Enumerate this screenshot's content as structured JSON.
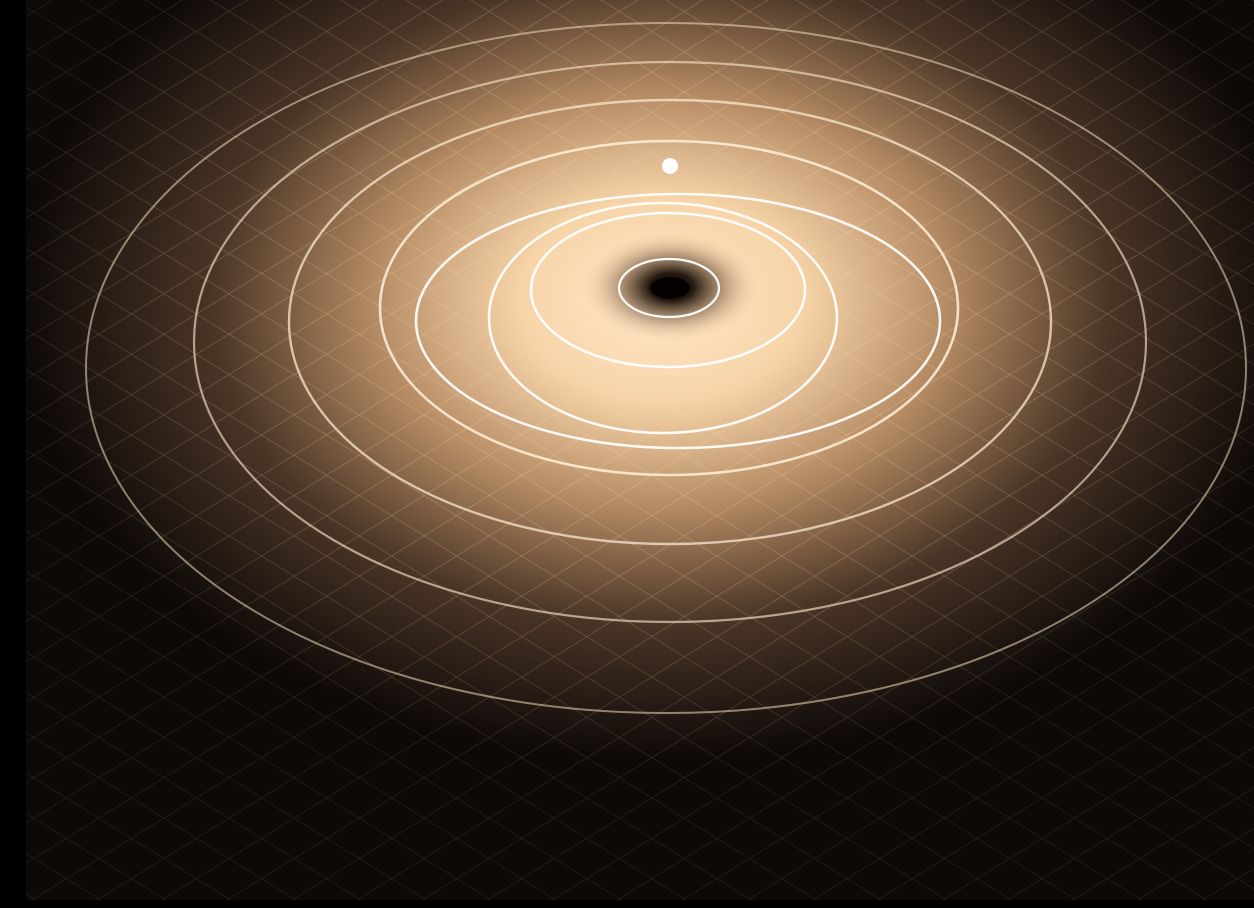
{
  "scene": {
    "subject": "orbits",
    "orbit_count": 8,
    "marker_count": 1,
    "colors": {
      "background": "#000000",
      "space_dark": "#0d0907",
      "glow_core": "#ffe6c4",
      "glow_mid": "#d9a97a",
      "orbit_line": "#fff3e0",
      "grid_line": "#f5d6ad",
      "marker": "#ffffff",
      "well_center": "#0a0604"
    }
  }
}
